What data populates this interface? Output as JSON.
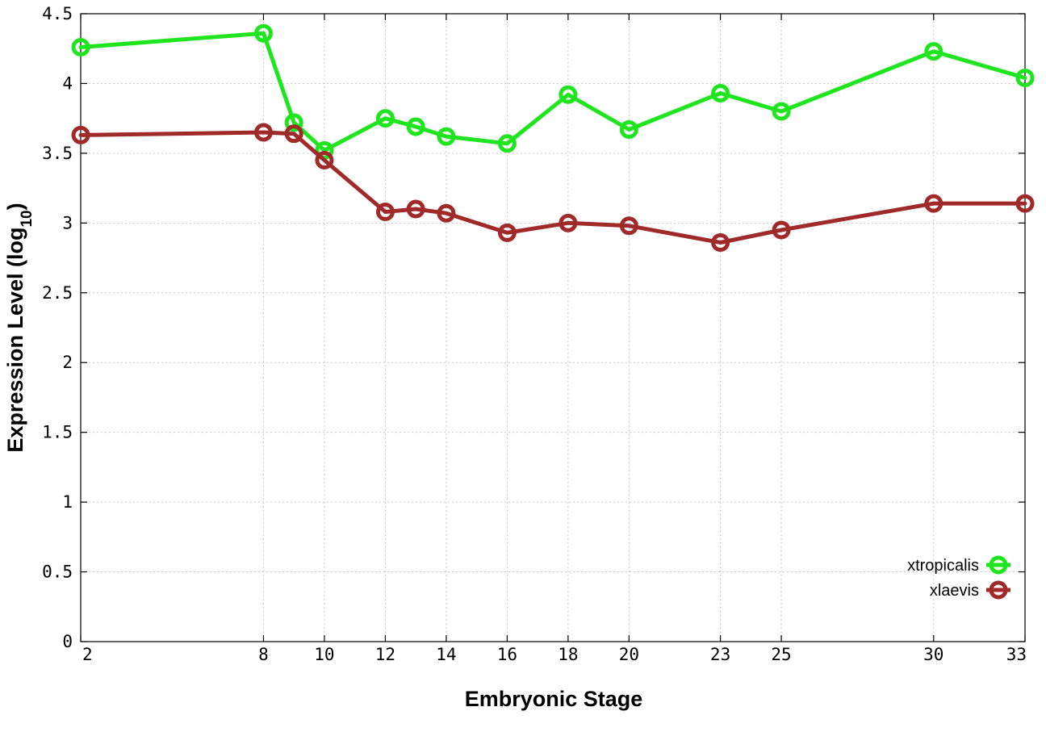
{
  "chart_data": {
    "type": "line",
    "title": "",
    "xlabel": "Embryonic Stage",
    "ylabel": {
      "prefix": "Expression Level (log",
      "subscript": "10",
      "suffix": ")"
    },
    "x": [
      2,
      8,
      9,
      10,
      12,
      13,
      14,
      16,
      18,
      20,
      23,
      25,
      30,
      33
    ],
    "x_ticks": [
      "2",
      "8",
      "10",
      "12",
      "14",
      "16",
      "18",
      "20",
      "23",
      "25",
      "30",
      "33"
    ],
    "y_ticks": [
      "0",
      "0.5",
      "1",
      "1.5",
      "2",
      "2.5",
      "3",
      "3.5",
      "4",
      "4.5"
    ],
    "xlim": [
      2,
      33
    ],
    "ylim": [
      0,
      4.5
    ],
    "grid": true,
    "legend_position": "bottom-right",
    "series": [
      {
        "name": "xtropicalis",
        "color": "#1fe51f",
        "values": [
          4.26,
          4.36,
          3.72,
          3.52,
          3.75,
          3.69,
          3.62,
          3.57,
          3.92,
          3.67,
          3.93,
          3.8,
          4.23,
          4.04
        ]
      },
      {
        "name": "xlaevis",
        "color": "#a02a2a",
        "values": [
          3.63,
          3.65,
          3.64,
          3.45,
          3.08,
          3.1,
          3.07,
          2.93,
          3.0,
          2.98,
          2.86,
          2.95,
          3.14,
          3.14
        ]
      }
    ]
  }
}
